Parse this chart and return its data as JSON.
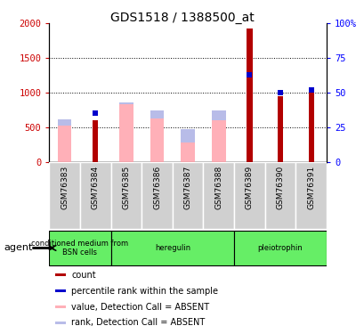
{
  "title": "GDS1518 / 1388500_at",
  "samples": [
    "GSM76383",
    "GSM76384",
    "GSM76385",
    "GSM76386",
    "GSM76387",
    "GSM76388",
    "GSM76389",
    "GSM76390",
    "GSM76391"
  ],
  "count_values": [
    null,
    600,
    null,
    null,
    null,
    null,
    1920,
    950,
    1010
  ],
  "rank_pct": [
    null,
    35,
    null,
    null,
    null,
    null,
    63,
    50,
    52
  ],
  "absent_value_values": [
    520,
    null,
    830,
    630,
    285,
    600,
    null,
    null,
    null
  ],
  "absent_rank_pct": [
    31,
    null,
    43,
    37,
    24,
    37,
    null,
    null,
    null
  ],
  "count_color": "#b20000",
  "rank_color": "#0000cc",
  "absent_value_color": "#ffb0b8",
  "absent_rank_color": "#b8bce8",
  "ylim_left": [
    0,
    2000
  ],
  "ylim_right": [
    0,
    100
  ],
  "yticks_left": [
    0,
    500,
    1000,
    1500,
    2000
  ],
  "ytick_labels_left": [
    "0",
    "500",
    "1000",
    "1500",
    "2000"
  ],
  "yticks_right": [
    0,
    25,
    50,
    75,
    100
  ],
  "ytick_labels_right": [
    "0",
    "25",
    "50",
    "75",
    "100%"
  ],
  "tick_label_bg": "#d0d0d0",
  "agent_groups": [
    {
      "label": "conditioned medium from\nBSN cells",
      "cols": [
        0,
        1
      ]
    },
    {
      "label": "heregulin",
      "cols": [
        2,
        3,
        4,
        5
      ]
    },
    {
      "label": "pleiotrophin",
      "cols": [
        6,
        7,
        8
      ]
    }
  ],
  "agent_color": "#66ee66",
  "legend": [
    {
      "label": "count",
      "color": "#b20000",
      "marker": "s"
    },
    {
      "label": "percentile rank within the sample",
      "color": "#0000cc",
      "marker": "s"
    },
    {
      "label": "value, Detection Call = ABSENT",
      "color": "#ffb0b8",
      "marker": "s"
    },
    {
      "label": "rank, Detection Call = ABSENT",
      "color": "#b8bce8",
      "marker": "s"
    }
  ]
}
